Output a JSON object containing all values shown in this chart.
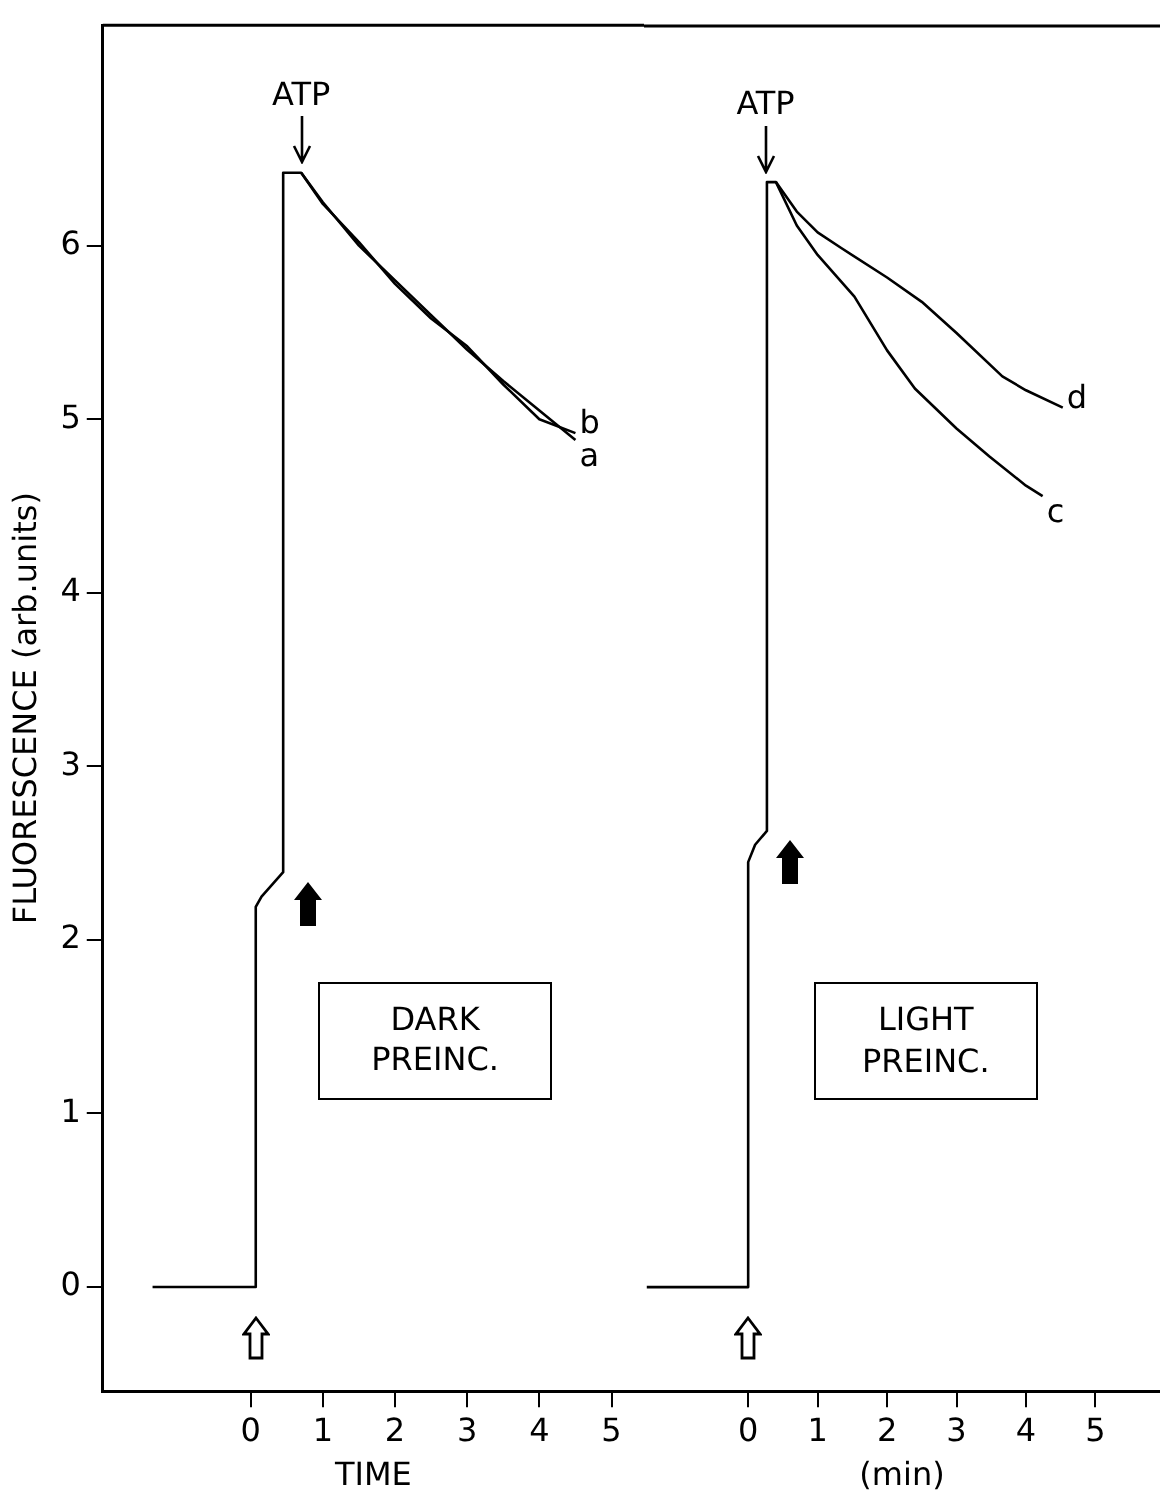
{
  "chart_data": [
    {
      "type": "line",
      "xlabel": "TIME",
      "ylabel": "FLUORESCENCE (arb.units)",
      "xlim": [
        -2.05,
        5.45
      ],
      "xticks": [
        0,
        1,
        2,
        3,
        4,
        5
      ],
      "ylim": [
        -0.6,
        7.27
      ],
      "yticks": [
        0,
        1,
        2,
        3,
        4,
        5,
        6
      ],
      "annotations": [
        {
          "text": "ATP",
          "x": 0.7,
          "y": 6.42
        },
        "DARK PREINC."
      ],
      "series": [
        {
          "name": "a",
          "color": "#000000",
          "x": [
            -1.36,
            0.07,
            0.07,
            0.15,
            0.3,
            0.45,
            0.45,
            0.7,
            1,
            1.5,
            2,
            2.5,
            3,
            3.5,
            4,
            4.5
          ],
          "values": [
            0,
            0,
            2.19,
            2.25,
            2.32,
            2.39,
            6.42,
            6.42,
            6.25,
            6.0,
            5.8,
            5.6,
            5.4,
            5.22,
            5.05,
            4.88
          ]
        },
        {
          "name": "b",
          "color": "#000000",
          "x": [
            0.7,
            1,
            1.5,
            2,
            2.5,
            3,
            3.5,
            4,
            4.5
          ],
          "values": [
            6.42,
            6.24,
            6.02,
            5.78,
            5.58,
            5.42,
            5.2,
            5.0,
            4.92
          ]
        }
      ]
    },
    {
      "type": "line",
      "xlabel": "(min)",
      "tick_labels": "x",
      "xlim": [
        -1.5,
        5.93
      ],
      "xticks": [
        0,
        1,
        2,
        3,
        4,
        5
      ],
      "ylim": [
        -0.6,
        7.27
      ],
      "yticks": [
        0,
        1,
        2,
        3,
        4,
        5,
        6
      ],
      "annotations": [
        {
          "text": "ATP",
          "x": 0.25,
          "y": 6.37
        },
        "LIGHT PREINC."
      ],
      "series": [
        {
          "name": "c",
          "color": "#000000",
          "x": [
            -1.46,
            0,
            0,
            0.1,
            0.27,
            0.27,
            0.4,
            0.7,
            1,
            1.53,
            2,
            2.4,
            3,
            3.47,
            4,
            4.24
          ],
          "values": [
            0,
            0,
            2.45,
            2.55,
            2.63,
            6.37,
            6.37,
            6.12,
            5.95,
            5.71,
            5.4,
            5.18,
            4.95,
            4.79,
            4.62,
            4.56
          ]
        },
        {
          "name": "d",
          "color": "#000000",
          "x": [
            0.4,
            0.7,
            1,
            1.34,
            2,
            2.5,
            3,
            3.66,
            4,
            4.53
          ],
          "values": [
            6.37,
            6.2,
            6.08,
            5.99,
            5.82,
            5.68,
            5.5,
            5.25,
            5.17,
            5.07
          ]
        }
      ]
    }
  ]
}
